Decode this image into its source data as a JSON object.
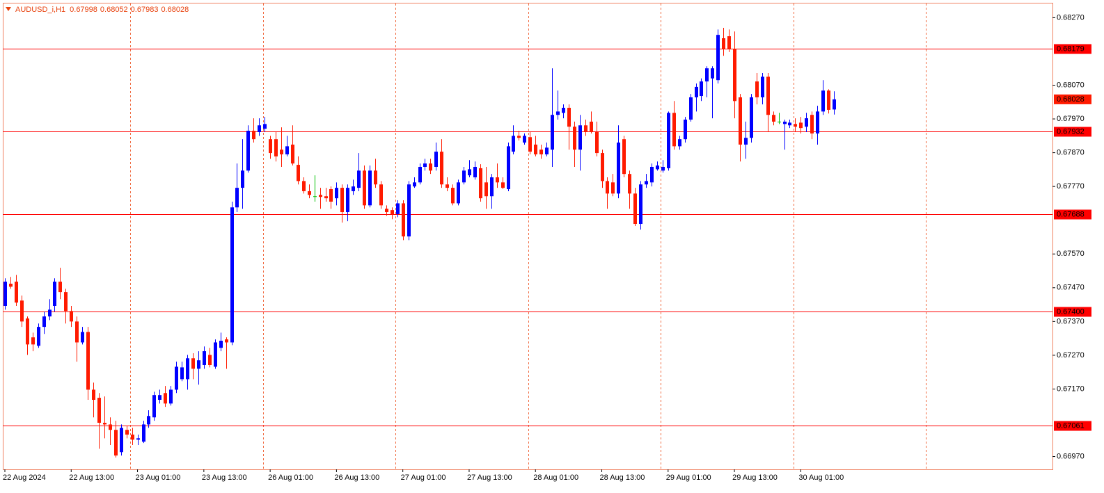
{
  "chart_data": {
    "type": "candlestick",
    "title": "AUDUSD_i,H1",
    "categories": [
      "22 Aug 2024",
      null,
      null,
      null,
      null,
      null,
      null,
      null,
      null,
      null,
      null,
      null,
      "22 Aug 13:00",
      null,
      null,
      null,
      null,
      null,
      null,
      null,
      null,
      null,
      null,
      null,
      "23 Aug 01:00",
      null,
      null,
      null,
      null,
      null,
      null,
      null,
      null,
      null,
      null,
      null,
      "23 Aug 13:00",
      null,
      null,
      null,
      null,
      null,
      null,
      null,
      null,
      null,
      null,
      null,
      "26 Aug 01:00",
      null,
      null,
      null,
      null,
      null,
      null,
      null,
      null,
      null,
      null,
      null,
      "26 Aug 13:00",
      null,
      null,
      null,
      null,
      null,
      null,
      null,
      null,
      null,
      null,
      null,
      "27 Aug 01:00",
      null,
      null,
      null,
      null,
      null,
      null,
      null,
      null,
      null,
      null,
      null,
      "27 Aug 13:00",
      null,
      null,
      null,
      null,
      null,
      null,
      null,
      null,
      null,
      null,
      null,
      "28 Aug 01:00",
      null,
      null,
      null,
      null,
      null,
      null,
      null,
      null,
      null,
      null,
      null,
      "28 Aug 13:00",
      null,
      null,
      null,
      null,
      null,
      null,
      null,
      null,
      null,
      null,
      null,
      "29 Aug 01:00",
      null,
      null,
      null,
      null,
      null,
      null,
      null,
      null,
      null,
      null,
      null,
      "29 Aug 13:00",
      null,
      null,
      null,
      null,
      null,
      null,
      null,
      null,
      null,
      null,
      null,
      "30 Aug 01:00",
      null,
      null,
      null,
      null,
      null,
      null
    ],
    "open": [
      0.67416,
      0.67482,
      0.67488,
      0.67432,
      0.67379,
      0.67323,
      0.67298,
      0.67354,
      0.67385,
      0.67416,
      0.67488,
      0.67457,
      0.67401,
      0.6737,
      0.67308,
      0.67339,
      0.67168,
      0.67144,
      0.6707,
      0.67065,
      0.67049,
      0.66983,
      0.67049,
      0.67035,
      0.6702,
      0.67014,
      0.67065,
      0.67086,
      0.67138,
      0.67158,
      0.67127,
      0.67168,
      0.67199,
      0.67199,
      0.67261,
      0.6723,
      0.67241,
      0.67271,
      0.67236,
      0.67292,
      0.67317,
      0.67308,
      0.67708,
      0.67766,
      0.67817,
      0.67935,
      0.67931,
      0.67941,
      0.6791,
      0.6791,
      0.67879,
      0.67865,
      0.67894,
      0.67834,
      0.67786,
      0.67756,
      0.67741,
      0.67745,
      0.67741,
      0.67762,
      0.67735,
      0.67766,
      0.67694,
      0.67756,
      0.67766,
      0.67817,
      0.67714,
      0.67817,
      0.67776,
      0.67704,
      0.677,
      0.67688,
      0.6772,
      0.67622,
      0.6777,
      0.67782,
      0.67828,
      0.67838,
      0.67828,
      0.67873,
      0.67776,
      0.67766,
      0.6772,
      0.67782,
      0.67803,
      0.67797,
      0.67824,
      0.67782,
      0.67741,
      0.67797,
      0.67782,
      0.67762,
      0.67873,
      0.6792,
      0.679,
      0.67916,
      0.67894,
      0.67879,
      0.67865,
      0.67879,
      0.67982,
      0.67988,
      0.68003,
      0.67947,
      0.67879,
      0.67951,
      0.67962,
      0.67931,
      0.67869,
      0.67786,
      0.67782,
      0.67749,
      0.6791,
      0.67807,
      0.67749,
      0.67659,
      0.67776,
      0.67782,
      0.67821,
      0.67817,
      0.67824,
      0.67988,
      0.67889,
      0.6791,
      0.67968,
      0.68034,
      0.68038,
      0.68081,
      0.6809,
      0.68085,
      0.68209,
      0.68215,
      0.68178,
      0.68034,
      0.67894,
      0.67914,
      0.68081,
      0.68034,
      0.68095,
      0.67982,
      0.67962,
      0.67955,
      0.67951,
      0.67955,
      0.67959,
      0.67947,
      0.67982,
      0.67927,
      0.67992,
      0.68054,
      0.67998
    ],
    "high": [
      0.67498,
      0.67502,
      0.67508,
      0.67447,
      0.67385,
      0.67337,
      0.67364,
      0.67399,
      0.67436,
      0.67498,
      0.67529,
      0.67467,
      0.67416,
      0.67385,
      0.67354,
      0.67354,
      0.67189,
      0.67158,
      0.67148,
      0.67086,
      0.67076,
      0.67065,
      0.67061,
      0.67055,
      0.67035,
      0.67076,
      0.67107,
      0.67162,
      0.67168,
      0.67179,
      0.67179,
      0.67251,
      0.67251,
      0.67271,
      0.67276,
      0.67282,
      0.67296,
      0.67292,
      0.67317,
      0.67337,
      0.67323,
      0.67725,
      0.67838,
      0.6791,
      0.67951,
      0.67972,
      0.67972,
      0.67976,
      0.6792,
      0.67931,
      0.67945,
      0.6792,
      0.67951,
      0.67859,
      0.67797,
      0.67776,
      0.67803,
      0.67766,
      0.67766,
      0.6777,
      0.67782,
      0.67776,
      0.67776,
      0.6779,
      0.67869,
      0.67832,
      0.67832,
      0.67852,
      0.67786,
      0.67714,
      0.67708,
      0.67729,
      0.67729,
      0.67786,
      0.67797,
      0.67838,
      0.67852,
      0.67852,
      0.679,
      0.6791,
      0.67797,
      0.67776,
      0.6779,
      0.67828,
      0.67848,
      0.67844,
      0.67836,
      0.67828,
      0.67807,
      0.67838,
      0.67797,
      0.679,
      0.67951,
      0.67935,
      0.67927,
      0.67931,
      0.6792,
      0.67894,
      0.679,
      0.6812,
      0.68054,
      0.68013,
      0.68013,
      0.67962,
      0.67982,
      0.67968,
      0.67992,
      0.67962,
      0.67879,
      0.67797,
      0.67807,
      0.67951,
      0.6792,
      0.67817,
      0.67766,
      0.67786,
      0.67807,
      0.67838,
      0.67844,
      0.67848,
      0.67992,
      0.68023,
      0.6792,
      0.67976,
      0.68044,
      0.68075,
      0.6809,
      0.68126,
      0.68126,
      0.68235,
      0.6824,
      0.68235,
      0.68229,
      0.68044,
      0.67962,
      0.68044,
      0.68106,
      0.68106,
      0.68106,
      0.67992,
      0.67988,
      0.67968,
      0.67968,
      0.67972,
      0.67976,
      0.67988,
      0.67992,
      0.68009,
      0.68085,
      0.68058,
      0.68052
    ],
    "low": [
      0.67405,
      0.67467,
      0.67416,
      0.67354,
      0.67271,
      0.67282,
      0.67292,
      0.67333,
      0.67374,
      0.67399,
      0.67436,
      0.67364,
      0.67354,
      0.67251,
      0.67302,
      0.67138,
      0.67086,
      0.66993,
      0.67024,
      0.67004,
      0.66967,
      0.66973,
      0.67024,
      0.67004,
      0.67004,
      0.6701,
      0.67055,
      0.67076,
      0.67127,
      0.67117,
      0.67121,
      0.67158,
      0.67193,
      0.67168,
      0.67199,
      0.67183,
      0.6723,
      0.67234,
      0.6723,
      0.67282,
      0.6723,
      0.673,
      0.67694,
      0.67704,
      0.67811,
      0.679,
      0.6792,
      0.67931,
      0.67852,
      0.67844,
      0.67828,
      0.67859,
      0.67832,
      0.67776,
      0.67749,
      0.67735,
      0.67725,
      0.67704,
      0.67725,
      0.67704,
      0.67714,
      0.67663,
      0.67667,
      0.67745,
      0.67756,
      0.67704,
      0.67708,
      0.67766,
      0.67704,
      0.67683,
      0.67673,
      0.67679,
      0.67611,
      0.67611,
      0.67766,
      0.67776,
      0.67817,
      0.67807,
      0.67817,
      0.67766,
      0.67756,
      0.67714,
      0.67714,
      0.67776,
      0.67797,
      0.6779,
      0.67725,
      0.67704,
      0.67704,
      0.67766,
      0.67762,
      0.67756,
      0.67865,
      0.67906,
      0.67894,
      0.67865,
      0.67859,
      0.67852,
      0.67859,
      0.67828,
      0.67968,
      0.67972,
      0.67879,
      0.67828,
      0.67817,
      0.6792,
      0.67927,
      0.67859,
      0.67766,
      0.67704,
      0.67741,
      0.67735,
      0.67797,
      0.67704,
      0.67653,
      0.67642,
      0.67766,
      0.6777,
      0.67817,
      0.67811,
      0.67817,
      0.67879,
      0.67879,
      0.679,
      0.67962,
      0.67992,
      0.68023,
      0.68034,
      0.67972,
      0.68075,
      0.68157,
      0.68168,
      0.67972,
      0.67844,
      0.67852,
      0.679,
      0.68013,
      0.68013,
      0.67931,
      0.67951,
      0.67955,
      0.67879,
      0.67943,
      0.67931,
      0.67927,
      0.67931,
      0.6791,
      0.67894,
      0.67982,
      0.67986,
      0.67983
    ],
    "close": [
      0.67488,
      0.67473,
      0.67426,
      0.6737,
      0.67302,
      0.67302,
      0.67354,
      0.67385,
      0.67405,
      0.67488,
      0.67457,
      0.67401,
      0.6737,
      0.67308,
      0.67339,
      0.67168,
      0.67138,
      0.6707,
      0.67065,
      0.67049,
      0.66973,
      0.67055,
      0.67035,
      0.6702,
      0.67024,
      0.67065,
      0.6709,
      0.67152,
      0.67152,
      0.67127,
      0.67168,
      0.67236,
      0.67234,
      0.67261,
      0.6723,
      0.67255,
      0.67282,
      0.67241,
      0.67308,
      0.67313,
      0.67308,
      0.67708,
      0.67766,
      0.67817,
      0.67935,
      0.6791,
      0.67951,
      0.67955,
      0.67869,
      0.67859,
      0.67865,
      0.67889,
      0.67838,
      0.67786,
      0.67756,
      0.67745,
      0.67741,
      0.67739,
      0.67735,
      0.67725,
      0.67766,
      0.67694,
      0.67766,
      0.6777,
      0.67817,
      0.67714,
      0.67817,
      0.67776,
      0.67714,
      0.67694,
      0.67688,
      0.6772,
      0.67622,
      0.67776,
      0.67782,
      0.67828,
      0.67838,
      0.67817,
      0.67873,
      0.67776,
      0.67766,
      0.6772,
      0.67782,
      0.67817,
      0.67821,
      0.67828,
      0.67735,
      0.67741,
      0.67797,
      0.67782,
      0.67766,
      0.67889,
      0.6792,
      0.67914,
      0.6792,
      0.67873,
      0.67865,
      0.67865,
      0.67885,
      0.67982,
      0.67992,
      0.68003,
      0.67947,
      0.67879,
      0.67951,
      0.67931,
      0.67931,
      0.67869,
      0.67786,
      0.67749,
      0.67749,
      0.679,
      0.67807,
      0.67749,
      0.67659,
      0.67776,
      0.67786,
      0.67828,
      0.67832,
      0.67828,
      0.67988,
      0.67889,
      0.6791,
      0.67968,
      0.68034,
      0.68065,
      0.68081,
      0.6812,
      0.6812,
      0.68219,
      0.68178,
      0.68178,
      0.68023,
      0.67894,
      0.67914,
      0.68034,
      0.68034,
      0.68095,
      0.67982,
      0.67962,
      0.67962,
      0.67962,
      0.67959,
      0.67947,
      0.67943,
      0.67972,
      0.67927,
      0.67992,
      0.68054,
      0.67997,
      0.68028
    ],
    "up_color": "#0000ff",
    "down_color": "#ff1a00",
    "doji_color": "#00c000",
    "level_color": "#ff0000",
    "hlines": [
      0.68179,
      0.67932,
      0.67688,
      {
        "value": 0.674,
        "label": "0.67400"
      },
      0.67061
    ],
    "ylim": [
      0.66932,
      0.68312
    ],
    "yticks": [
      {
        "value": 0.6827,
        "label": "0.68270"
      },
      {
        "value": 0.6807,
        "label": "0.68070"
      },
      {
        "value": 0.6797,
        "label": "0.67970"
      },
      {
        "value": 0.6787,
        "label": "0.67870"
      },
      {
        "value": 0.6777,
        "label": "0.67770"
      },
      {
        "value": 0.6757,
        "label": "0.67570"
      },
      {
        "value": 0.6747,
        "label": "0.67470"
      },
      {
        "value": 0.6737,
        "label": "0.67370"
      },
      {
        "value": 0.6727,
        "label": "0.67270"
      },
      {
        "value": 0.6717,
        "label": "0.67170"
      },
      {
        "value": 0.6697,
        "label": "0.66970"
      }
    ]
  }
}
